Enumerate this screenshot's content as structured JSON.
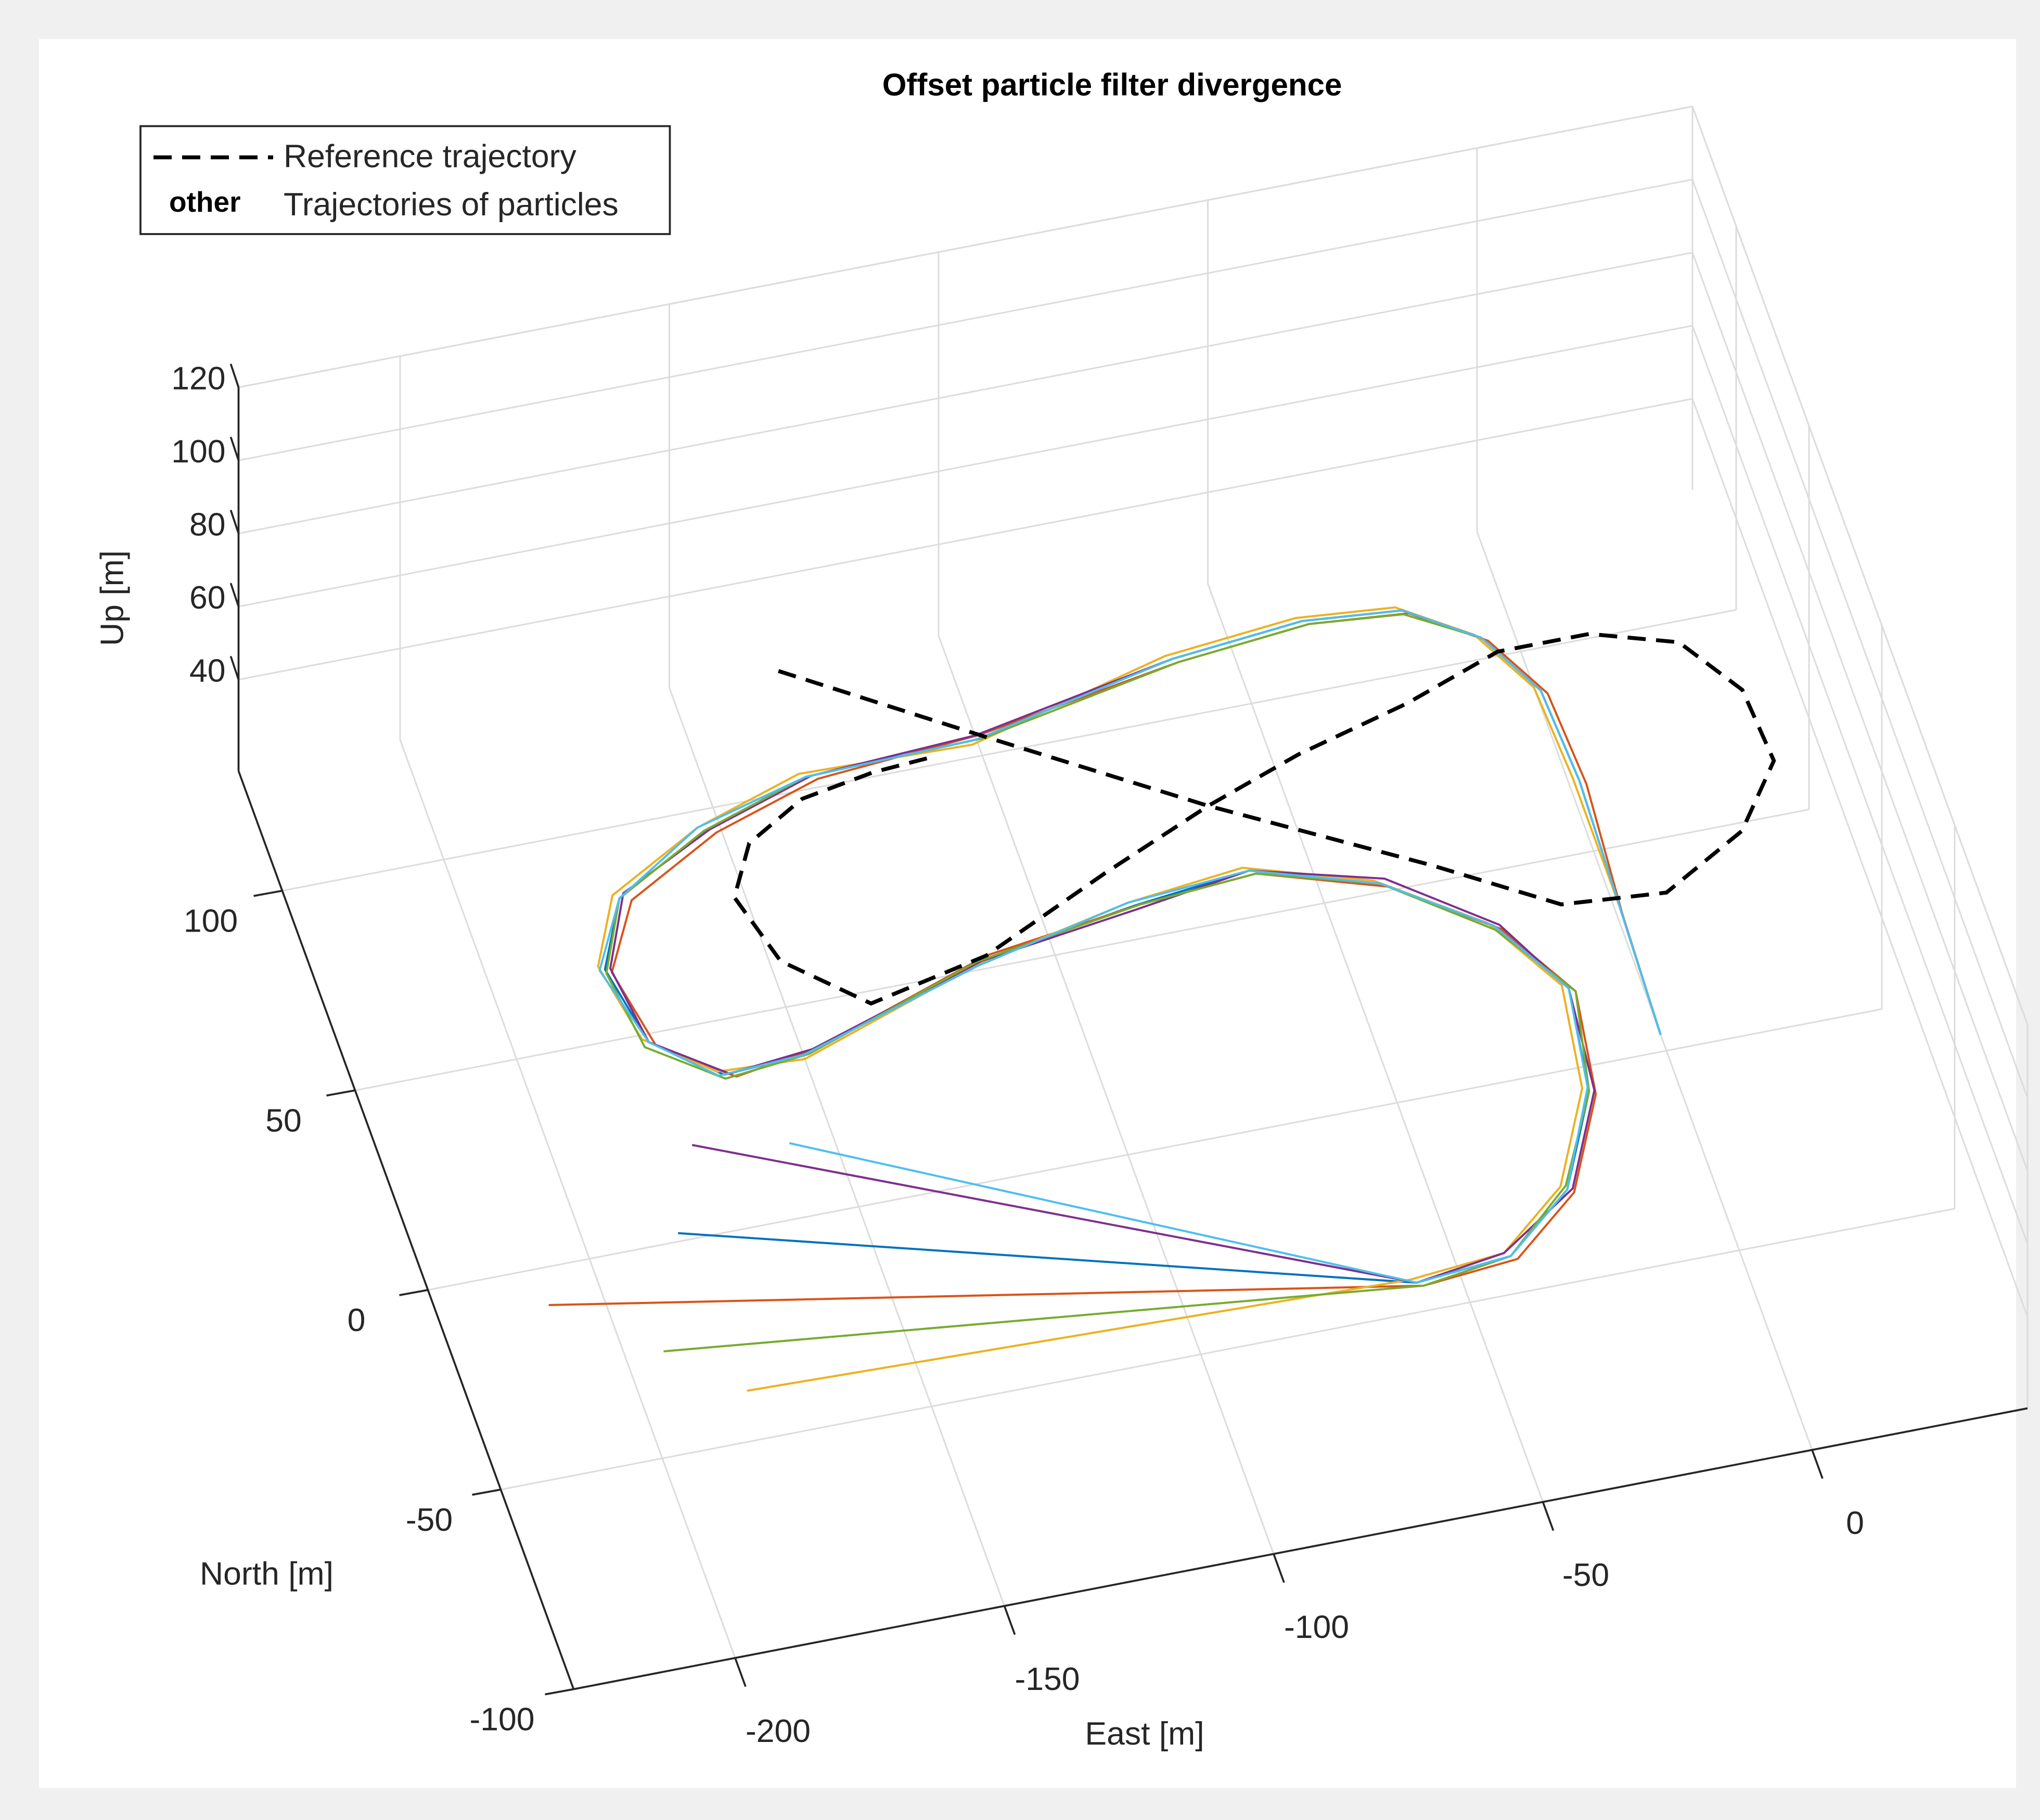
{
  "chart_data": {
    "type": "line3d",
    "title": "Offset particle filter divergence",
    "xlabel": "East [m]",
    "ylabel": "North [m]",
    "zlabel": "Up [m]",
    "xlim": [
      -230,
      40
    ],
    "ylim": [
      -100,
      130
    ],
    "zlim": [
      15,
      120
    ],
    "xticks": [
      -200,
      -150,
      -100,
      -50,
      0
    ],
    "yticks": [
      -100,
      -50,
      0,
      50,
      100
    ],
    "zticks": [
      40,
      60,
      80,
      100,
      120
    ],
    "grid": true,
    "legend": "top-left",
    "series": [
      {
        "name": "Reference trajectory",
        "color": "#000000",
        "dashed": true,
        "x": [
          -130,
          -98,
          -64,
          -29,
          -9,
          10,
          27,
          37,
          36,
          28,
          13,
          -4,
          -23,
          -45,
          -64,
          -86,
          -112,
          -135,
          -148,
          -152,
          -146,
          -134,
          -120,
          -108
        ],
        "y": [
          129,
          104,
          78,
          54,
          39,
          37,
          48,
          63,
          81,
          95,
          101,
          101,
          93,
          86,
          78,
          67,
          53,
          47,
          61,
          78,
          90,
          98,
          101,
          102
        ]
      }
    ],
    "particles": {
      "name": "Trajectories of particles",
      "marker_label": "other",
      "series": [
        {
          "color": "#0072BD",
          "x": [
            -183,
            -58,
            -40,
            -26,
            -16,
            -13,
            -22,
            -39,
            -61,
            -83,
            -114,
            -149,
            -165,
            -176,
            -179,
            -172,
            -153,
            -132,
            -100,
            -61,
            -36,
            -18,
            -6,
            1,
            2,
            1,
            0
          ],
          "y": [
            2,
            -43,
            -41,
            -28,
            -6,
            19,
            37,
            52,
            61,
            58,
            52,
            38,
            37,
            48,
            67,
            83,
            95,
            103,
            104,
            114,
            117,
            115,
            105,
            90,
            67,
            35,
            4
          ]
        },
        {
          "color": "#D95319",
          "x": [
            -210,
            -57,
            -39,
            -25,
            -15,
            -12,
            -21,
            -38,
            -60,
            -82,
            -112,
            -147,
            -163,
            -175,
            -178,
            -170,
            -151,
            -130,
            -99,
            -60,
            -35,
            -17,
            -5,
            2,
            3,
            1,
            0
          ],
          "y": [
            -9,
            -44,
            -42,
            -29,
            -7,
            18,
            36,
            51,
            60,
            58,
            53,
            39,
            36,
            47,
            66,
            82,
            94,
            102,
            105,
            113,
            116,
            114,
            104,
            89,
            66,
            34,
            4
          ]
        },
        {
          "color": "#EDB120",
          "x": [
            -181,
            -59,
            -41,
            -27,
            -17,
            -14,
            -23,
            -40,
            -62,
            -84,
            -115,
            -150,
            -166,
            -177,
            -180,
            -173,
            -154,
            -133,
            -101,
            -62,
            -37,
            -19,
            -7,
            0,
            1,
            1,
            0
          ],
          "y": [
            -38,
            -42,
            -40,
            -27,
            -5,
            20,
            38,
            53,
            62,
            59,
            51,
            37,
            38,
            49,
            68,
            84,
            96,
            104,
            103,
            115,
            118,
            116,
            106,
            91,
            68,
            36,
            4
          ]
        },
        {
          "color": "#7E2F8E",
          "x": [
            -175,
            -58,
            -41,
            -25,
            -15,
            -13,
            -21,
            -38,
            -61,
            -83,
            -113,
            -148,
            -164,
            -176,
            -178,
            -171,
            -152,
            -131,
            -100,
            -61,
            -36,
            -18,
            -6,
            1,
            2,
            1,
            0
          ],
          "y": [
            22,
            -43,
            -40,
            -28,
            -6,
            19,
            37,
            53,
            61,
            57,
            52,
            39,
            37,
            48,
            67,
            84,
            95,
            103,
            105,
            114,
            117,
            115,
            105,
            90,
            67,
            35,
            4
          ]
        },
        {
          "color": "#77AC30",
          "x": [
            -193,
            -57,
            -40,
            -26,
            -16,
            -12,
            -22,
            -39,
            -60,
            -82,
            -114,
            -149,
            -165,
            -177,
            -179,
            -172,
            -153,
            -132,
            -99,
            -60,
            -35,
            -18,
            -6,
            1,
            2,
            1,
            0
          ],
          "y": [
            -25,
            -44,
            -41,
            -27,
            -6,
            18,
            36,
            52,
            60,
            58,
            52,
            38,
            36,
            47,
            66,
            83,
            95,
            103,
            104,
            113,
            116,
            114,
            105,
            90,
            67,
            35,
            4
          ]
        },
        {
          "color": "#4DBEEE",
          "x": [
            -158,
            -58,
            -40,
            -26,
            -16,
            -13,
            -22,
            -39,
            -61,
            -84,
            -114,
            -150,
            -166,
            -176,
            -180,
            -172,
            -154,
            -132,
            -100,
            -61,
            -36,
            -18,
            -6,
            1,
            2,
            1,
            0
          ],
          "y": [
            18,
            -43,
            -41,
            -28,
            -5,
            19,
            37,
            52,
            61,
            59,
            51,
            38,
            37,
            48,
            67,
            83,
            96,
            103,
            104,
            114,
            117,
            115,
            105,
            90,
            67,
            35,
            4
          ]
        }
      ]
    }
  }
}
